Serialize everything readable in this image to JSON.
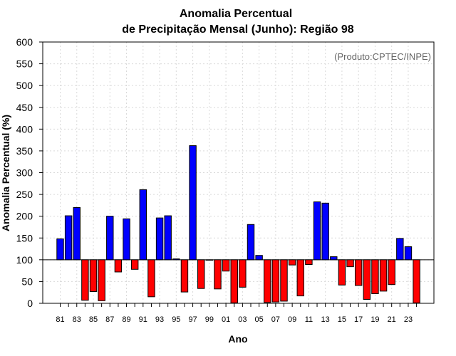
{
  "chart_data": {
    "type": "bar",
    "title_line1": "Anomalia Percentual",
    "title_line2": "de Precipitação Mensal (Junho): Região 98",
    "xlabel": "Ano",
    "ylabel": "Anomalia Percentual (%)",
    "credit": "(Produto:CPTEC/INPE)",
    "ylim": [
      0,
      600
    ],
    "yticks": [
      0,
      50,
      100,
      150,
      200,
      250,
      300,
      350,
      400,
      450,
      500,
      550,
      600
    ],
    "baseline": 100,
    "grid": true,
    "colors": {
      "above": "#0000ff",
      "below": "#ff0000"
    },
    "categories": [
      "81",
      "82",
      "83",
      "84",
      "85",
      "86",
      "87",
      "88",
      "89",
      "90",
      "91",
      "92",
      "93",
      "94",
      "95",
      "96",
      "97",
      "98",
      "99",
      "00",
      "01",
      "02",
      "03",
      "04",
      "05",
      "06",
      "07",
      "08",
      "09",
      "10",
      "11",
      "12",
      "13",
      "14",
      "15",
      "16",
      "17",
      "18",
      "19",
      "20",
      "21",
      "22",
      "23",
      "24"
    ],
    "tick_labels": [
      "81",
      "83",
      "85",
      "87",
      "89",
      "91",
      "93",
      "95",
      "97",
      "99",
      "01",
      "03",
      "05",
      "07",
      "09",
      "11",
      "13",
      "15",
      "17",
      "19",
      "21",
      "23"
    ],
    "values": [
      148,
      201,
      220,
      7,
      27,
      6,
      200,
      72,
      194,
      78,
      261,
      15,
      196,
      201,
      102,
      26,
      362,
      34,
      99,
      33,
      74,
      1,
      37,
      181,
      110,
      2,
      3,
      5,
      88,
      17,
      89,
      233,
      230,
      107,
      42,
      84,
      41,
      9,
      22,
      28,
      43,
      149,
      130,
      1
    ]
  }
}
